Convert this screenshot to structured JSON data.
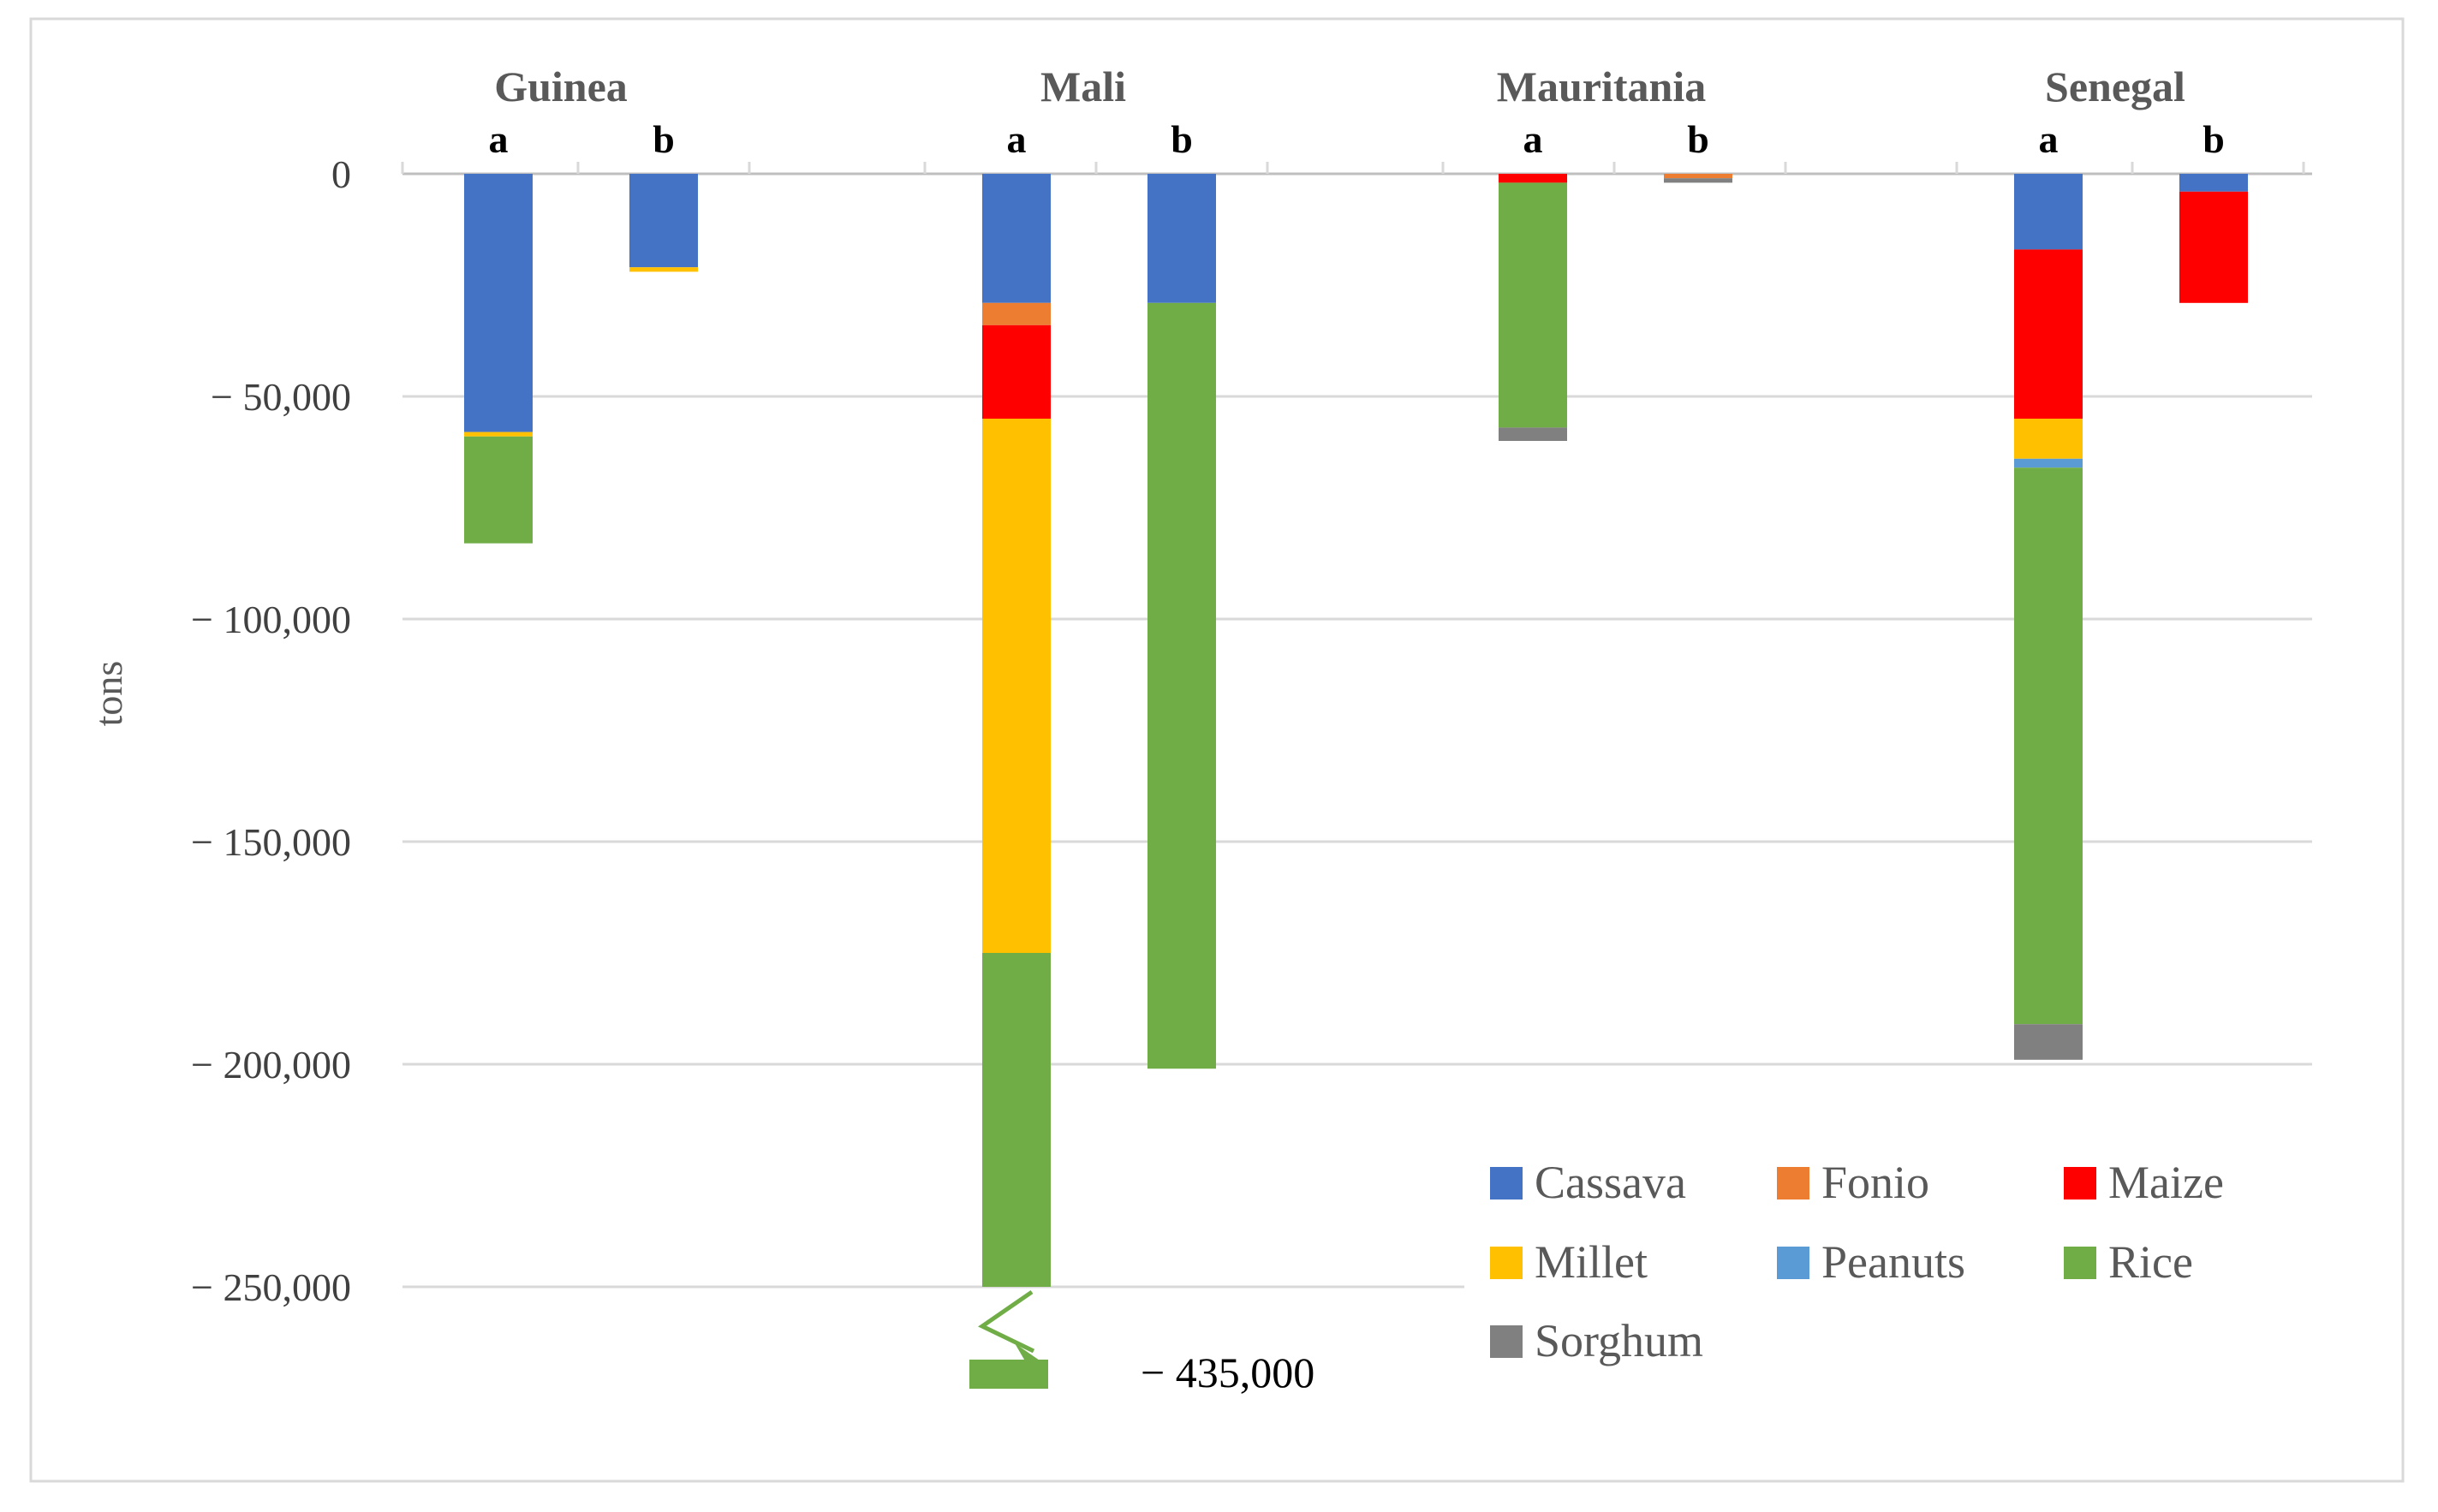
{
  "chart_data": {
    "type": "bar",
    "stacked": true,
    "title": "",
    "xlabel": "",
    "ylabel": "tons",
    "ylim": [
      -250000,
      0
    ],
    "y_ticks": [
      0,
      -50000,
      -100000,
      -150000,
      -200000,
      -250000
    ],
    "y_tick_labels": [
      "0",
      "− 50,000",
      "− 100,000",
      "− 150,000",
      "− 200,000",
      "− 250,000"
    ],
    "grid": true,
    "legend_position": "bottom-right",
    "groups": [
      {
        "name": "Guinea",
        "bars": [
          "a",
          "b"
        ]
      },
      {
        "name": "Mali",
        "bars": [
          "a",
          "b"
        ]
      },
      {
        "name": "Mauritania",
        "bars": [
          "a",
          "b"
        ]
      },
      {
        "name": "Senegal",
        "bars": [
          "a",
          "b"
        ]
      }
    ],
    "categories": [
      "Guinea a",
      "Guinea b",
      "Mali a",
      "Mali b",
      "Mauritania a",
      "Mauritania b",
      "Senegal a",
      "Senegal b"
    ],
    "series": [
      {
        "name": "Cassava",
        "color": "#4472C4",
        "values": [
          -58000,
          -21000,
          -29000,
          -29000,
          0,
          0,
          -17000,
          -4000
        ]
      },
      {
        "name": "Fonio",
        "color": "#ED7D31",
        "values": [
          0,
          0,
          -5000,
          0,
          0,
          -1000,
          0,
          0
        ]
      },
      {
        "name": "Maize",
        "color": "#FF0000",
        "values": [
          0,
          0,
          -21000,
          0,
          -2000,
          0,
          -38000,
          -25000
        ]
      },
      {
        "name": "Millet",
        "color": "#FFC000",
        "values": [
          -1000,
          -1000,
          -120000,
          0,
          0,
          0,
          -9000,
          0
        ]
      },
      {
        "name": "Peanuts",
        "color": "#5B9BD5",
        "values": [
          0,
          0,
          0,
          0,
          0,
          0,
          -2000,
          0
        ]
      },
      {
        "name": "Rice",
        "color": "#70AD47",
        "values": [
          -24000,
          0,
          -260000,
          -172000,
          -55000,
          0,
          -125000,
          0
        ]
      },
      {
        "name": "Sorghum",
        "color": "#808080",
        "values": [
          0,
          0,
          0,
          0,
          -3000,
          -1000,
          -8000,
          0
        ]
      }
    ],
    "axis_break": {
      "bar": "Mali a",
      "total": -435000,
      "label": "− 435,000"
    }
  }
}
